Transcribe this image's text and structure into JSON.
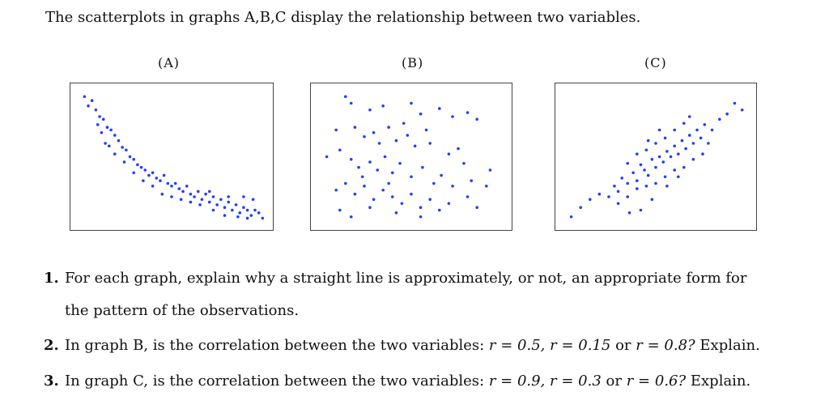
{
  "intro": "The scatterplots in graphs A,B,C display the relationship between two variables.",
  "graphs": [
    {
      "label": "(A)"
    },
    {
      "label": "(B)"
    },
    {
      "label": "(C)"
    }
  ],
  "questions": [
    {
      "num": "1.",
      "line1": "For each graph, explain why a straight line is approximately, or not, an appropriate form for",
      "line2": "the pattern of the observations."
    },
    {
      "num": "2.",
      "prefix": "In graph B, is the correlation between the two variables:",
      "options": [
        "r = 0.5,",
        "r = 0.15",
        "or",
        "r = 0.8?"
      ],
      "suffix": "Explain."
    },
    {
      "num": "3.",
      "prefix": "In graph C, is the correlation between the two variables:",
      "options": [
        "r = 0.9,",
        "r = 0.3",
        "or",
        "r = 0.6?"
      ],
      "suffix": "Explain."
    }
  ],
  "colors": {
    "points": "#1f3fff"
  },
  "chart_data": [
    {
      "type": "scatter",
      "title": "(A)",
      "points": [
        [
          0.04,
          0.95
        ],
        [
          0.08,
          0.92
        ],
        [
          0.06,
          0.88
        ],
        [
          0.1,
          0.85
        ],
        [
          0.12,
          0.8
        ],
        [
          0.14,
          0.78
        ],
        [
          0.11,
          0.74
        ],
        [
          0.16,
          0.72
        ],
        [
          0.13,
          0.68
        ],
        [
          0.18,
          0.7
        ],
        [
          0.2,
          0.66
        ],
        [
          0.15,
          0.6
        ],
        [
          0.17,
          0.58
        ],
        [
          0.22,
          0.62
        ],
        [
          0.24,
          0.57
        ],
        [
          0.26,
          0.55
        ],
        [
          0.2,
          0.52
        ],
        [
          0.28,
          0.5
        ],
        [
          0.3,
          0.48
        ],
        [
          0.25,
          0.46
        ],
        [
          0.32,
          0.44
        ],
        [
          0.34,
          0.42
        ],
        [
          0.36,
          0.4
        ],
        [
          0.3,
          0.38
        ],
        [
          0.38,
          0.36
        ],
        [
          0.4,
          0.38
        ],
        [
          0.42,
          0.34
        ],
        [
          0.44,
          0.32
        ],
        [
          0.46,
          0.36
        ],
        [
          0.48,
          0.3
        ],
        [
          0.5,
          0.28
        ],
        [
          0.52,
          0.3
        ],
        [
          0.54,
          0.26
        ],
        [
          0.56,
          0.24
        ],
        [
          0.58,
          0.28
        ],
        [
          0.6,
          0.22
        ],
        [
          0.62,
          0.2
        ],
        [
          0.64,
          0.24
        ],
        [
          0.66,
          0.18
        ],
        [
          0.68,
          0.22
        ],
        [
          0.7,
          0.16
        ],
        [
          0.72,
          0.2
        ],
        [
          0.74,
          0.14
        ],
        [
          0.76,
          0.18
        ],
        [
          0.78,
          0.12
        ],
        [
          0.8,
          0.16
        ],
        [
          0.82,
          0.1
        ],
        [
          0.84,
          0.14
        ],
        [
          0.86,
          0.08
        ],
        [
          0.88,
          0.12
        ],
        [
          0.9,
          0.1
        ],
        [
          0.92,
          0.06
        ],
        [
          0.94,
          0.1
        ],
        [
          0.96,
          0.08
        ],
        [
          0.45,
          0.22
        ],
        [
          0.55,
          0.18
        ],
        [
          0.65,
          0.14
        ],
        [
          0.72,
          0.1
        ],
        [
          0.78,
          0.06
        ],
        [
          0.85,
          0.05
        ],
        [
          0.9,
          0.04
        ],
        [
          0.98,
          0.04
        ],
        [
          0.35,
          0.32
        ],
        [
          0.4,
          0.28
        ],
        [
          0.5,
          0.2
        ],
        [
          0.6,
          0.16
        ],
        [
          0.7,
          0.24
        ],
        [
          0.8,
          0.2
        ],
        [
          0.88,
          0.2
        ],
        [
          0.93,
          0.18
        ]
      ]
    },
    {
      "type": "scatter",
      "title": "(B)",
      "points": [
        [
          0.15,
          0.95
        ],
        [
          0.18,
          0.9
        ],
        [
          0.28,
          0.85
        ],
        [
          0.35,
          0.88
        ],
        [
          0.5,
          0.9
        ],
        [
          0.55,
          0.82
        ],
        [
          0.65,
          0.86
        ],
        [
          0.72,
          0.8
        ],
        [
          0.8,
          0.83
        ],
        [
          0.85,
          0.78
        ],
        [
          0.1,
          0.7
        ],
        [
          0.2,
          0.72
        ],
        [
          0.25,
          0.65
        ],
        [
          0.3,
          0.68
        ],
        [
          0.38,
          0.72
        ],
        [
          0.42,
          0.62
        ],
        [
          0.48,
          0.66
        ],
        [
          0.52,
          0.58
        ],
        [
          0.6,
          0.6
        ],
        [
          0.7,
          0.52
        ],
        [
          0.75,
          0.56
        ],
        [
          0.78,
          0.45
        ],
        [
          0.05,
          0.5
        ],
        [
          0.12,
          0.55
        ],
        [
          0.18,
          0.48
        ],
        [
          0.22,
          0.42
        ],
        [
          0.28,
          0.46
        ],
        [
          0.32,
          0.4
        ],
        [
          0.36,
          0.5
        ],
        [
          0.4,
          0.38
        ],
        [
          0.44,
          0.45
        ],
        [
          0.5,
          0.35
        ],
        [
          0.56,
          0.42
        ],
        [
          0.62,
          0.3
        ],
        [
          0.66,
          0.36
        ],
        [
          0.72,
          0.28
        ],
        [
          0.82,
          0.32
        ],
        [
          0.9,
          0.28
        ],
        [
          0.1,
          0.25
        ],
        [
          0.15,
          0.3
        ],
        [
          0.2,
          0.22
        ],
        [
          0.25,
          0.28
        ],
        [
          0.3,
          0.18
        ],
        [
          0.35,
          0.25
        ],
        [
          0.4,
          0.2
        ],
        [
          0.45,
          0.15
        ],
        [
          0.5,
          0.22
        ],
        [
          0.55,
          0.12
        ],
        [
          0.6,
          0.18
        ],
        [
          0.65,
          0.1
        ],
        [
          0.8,
          0.2
        ],
        [
          0.12,
          0.1
        ],
        [
          0.18,
          0.05
        ],
        [
          0.28,
          0.12
        ],
        [
          0.42,
          0.08
        ],
        [
          0.55,
          0.05
        ],
        [
          0.7,
          0.15
        ],
        [
          0.85,
          0.12
        ],
        [
          0.92,
          0.4
        ],
        [
          0.33,
          0.6
        ],
        [
          0.46,
          0.75
        ],
        [
          0.58,
          0.7
        ],
        [
          0.24,
          0.35
        ],
        [
          0.38,
          0.3
        ]
      ]
    },
    {
      "type": "scatter",
      "title": "(C)",
      "points": [
        [
          0.05,
          0.05
        ],
        [
          0.1,
          0.12
        ],
        [
          0.15,
          0.18
        ],
        [
          0.2,
          0.22
        ],
        [
          0.25,
          0.2
        ],
        [
          0.28,
          0.28
        ],
        [
          0.3,
          0.24
        ],
        [
          0.32,
          0.34
        ],
        [
          0.35,
          0.3
        ],
        [
          0.38,
          0.38
        ],
        [
          0.4,
          0.32
        ],
        [
          0.42,
          0.44
        ],
        [
          0.44,
          0.4
        ],
        [
          0.46,
          0.36
        ],
        [
          0.48,
          0.48
        ],
        [
          0.5,
          0.42
        ],
        [
          0.52,
          0.5
        ],
        [
          0.54,
          0.46
        ],
        [
          0.56,
          0.54
        ],
        [
          0.58,
          0.5
        ],
        [
          0.6,
          0.58
        ],
        [
          0.62,
          0.52
        ],
        [
          0.64,
          0.62
        ],
        [
          0.66,
          0.56
        ],
        [
          0.68,
          0.66
        ],
        [
          0.7,
          0.6
        ],
        [
          0.72,
          0.7
        ],
        [
          0.74,
          0.64
        ],
        [
          0.76,
          0.74
        ],
        [
          0.8,
          0.7
        ],
        [
          0.84,
          0.78
        ],
        [
          0.88,
          0.82
        ],
        [
          0.92,
          0.9
        ],
        [
          0.96,
          0.85
        ],
        [
          0.35,
          0.45
        ],
        [
          0.4,
          0.52
        ],
        [
          0.45,
          0.55
        ],
        [
          0.5,
          0.6
        ],
        [
          0.55,
          0.64
        ],
        [
          0.6,
          0.7
        ],
        [
          0.65,
          0.75
        ],
        [
          0.3,
          0.15
        ],
        [
          0.35,
          0.2
        ],
        [
          0.4,
          0.26
        ],
        [
          0.45,
          0.28
        ],
        [
          0.5,
          0.3
        ],
        [
          0.55,
          0.35
        ],
        [
          0.6,
          0.4
        ],
        [
          0.65,
          0.42
        ],
        [
          0.7,
          0.48
        ],
        [
          0.75,
          0.52
        ],
        [
          0.78,
          0.6
        ],
        [
          0.42,
          0.1
        ],
        [
          0.48,
          0.18
        ],
        [
          0.36,
          0.08
        ],
        [
          0.62,
          0.35
        ],
        [
          0.56,
          0.28
        ],
        [
          0.46,
          0.62
        ],
        [
          0.52,
          0.7
        ],
        [
          0.68,
          0.8
        ]
      ]
    }
  ]
}
